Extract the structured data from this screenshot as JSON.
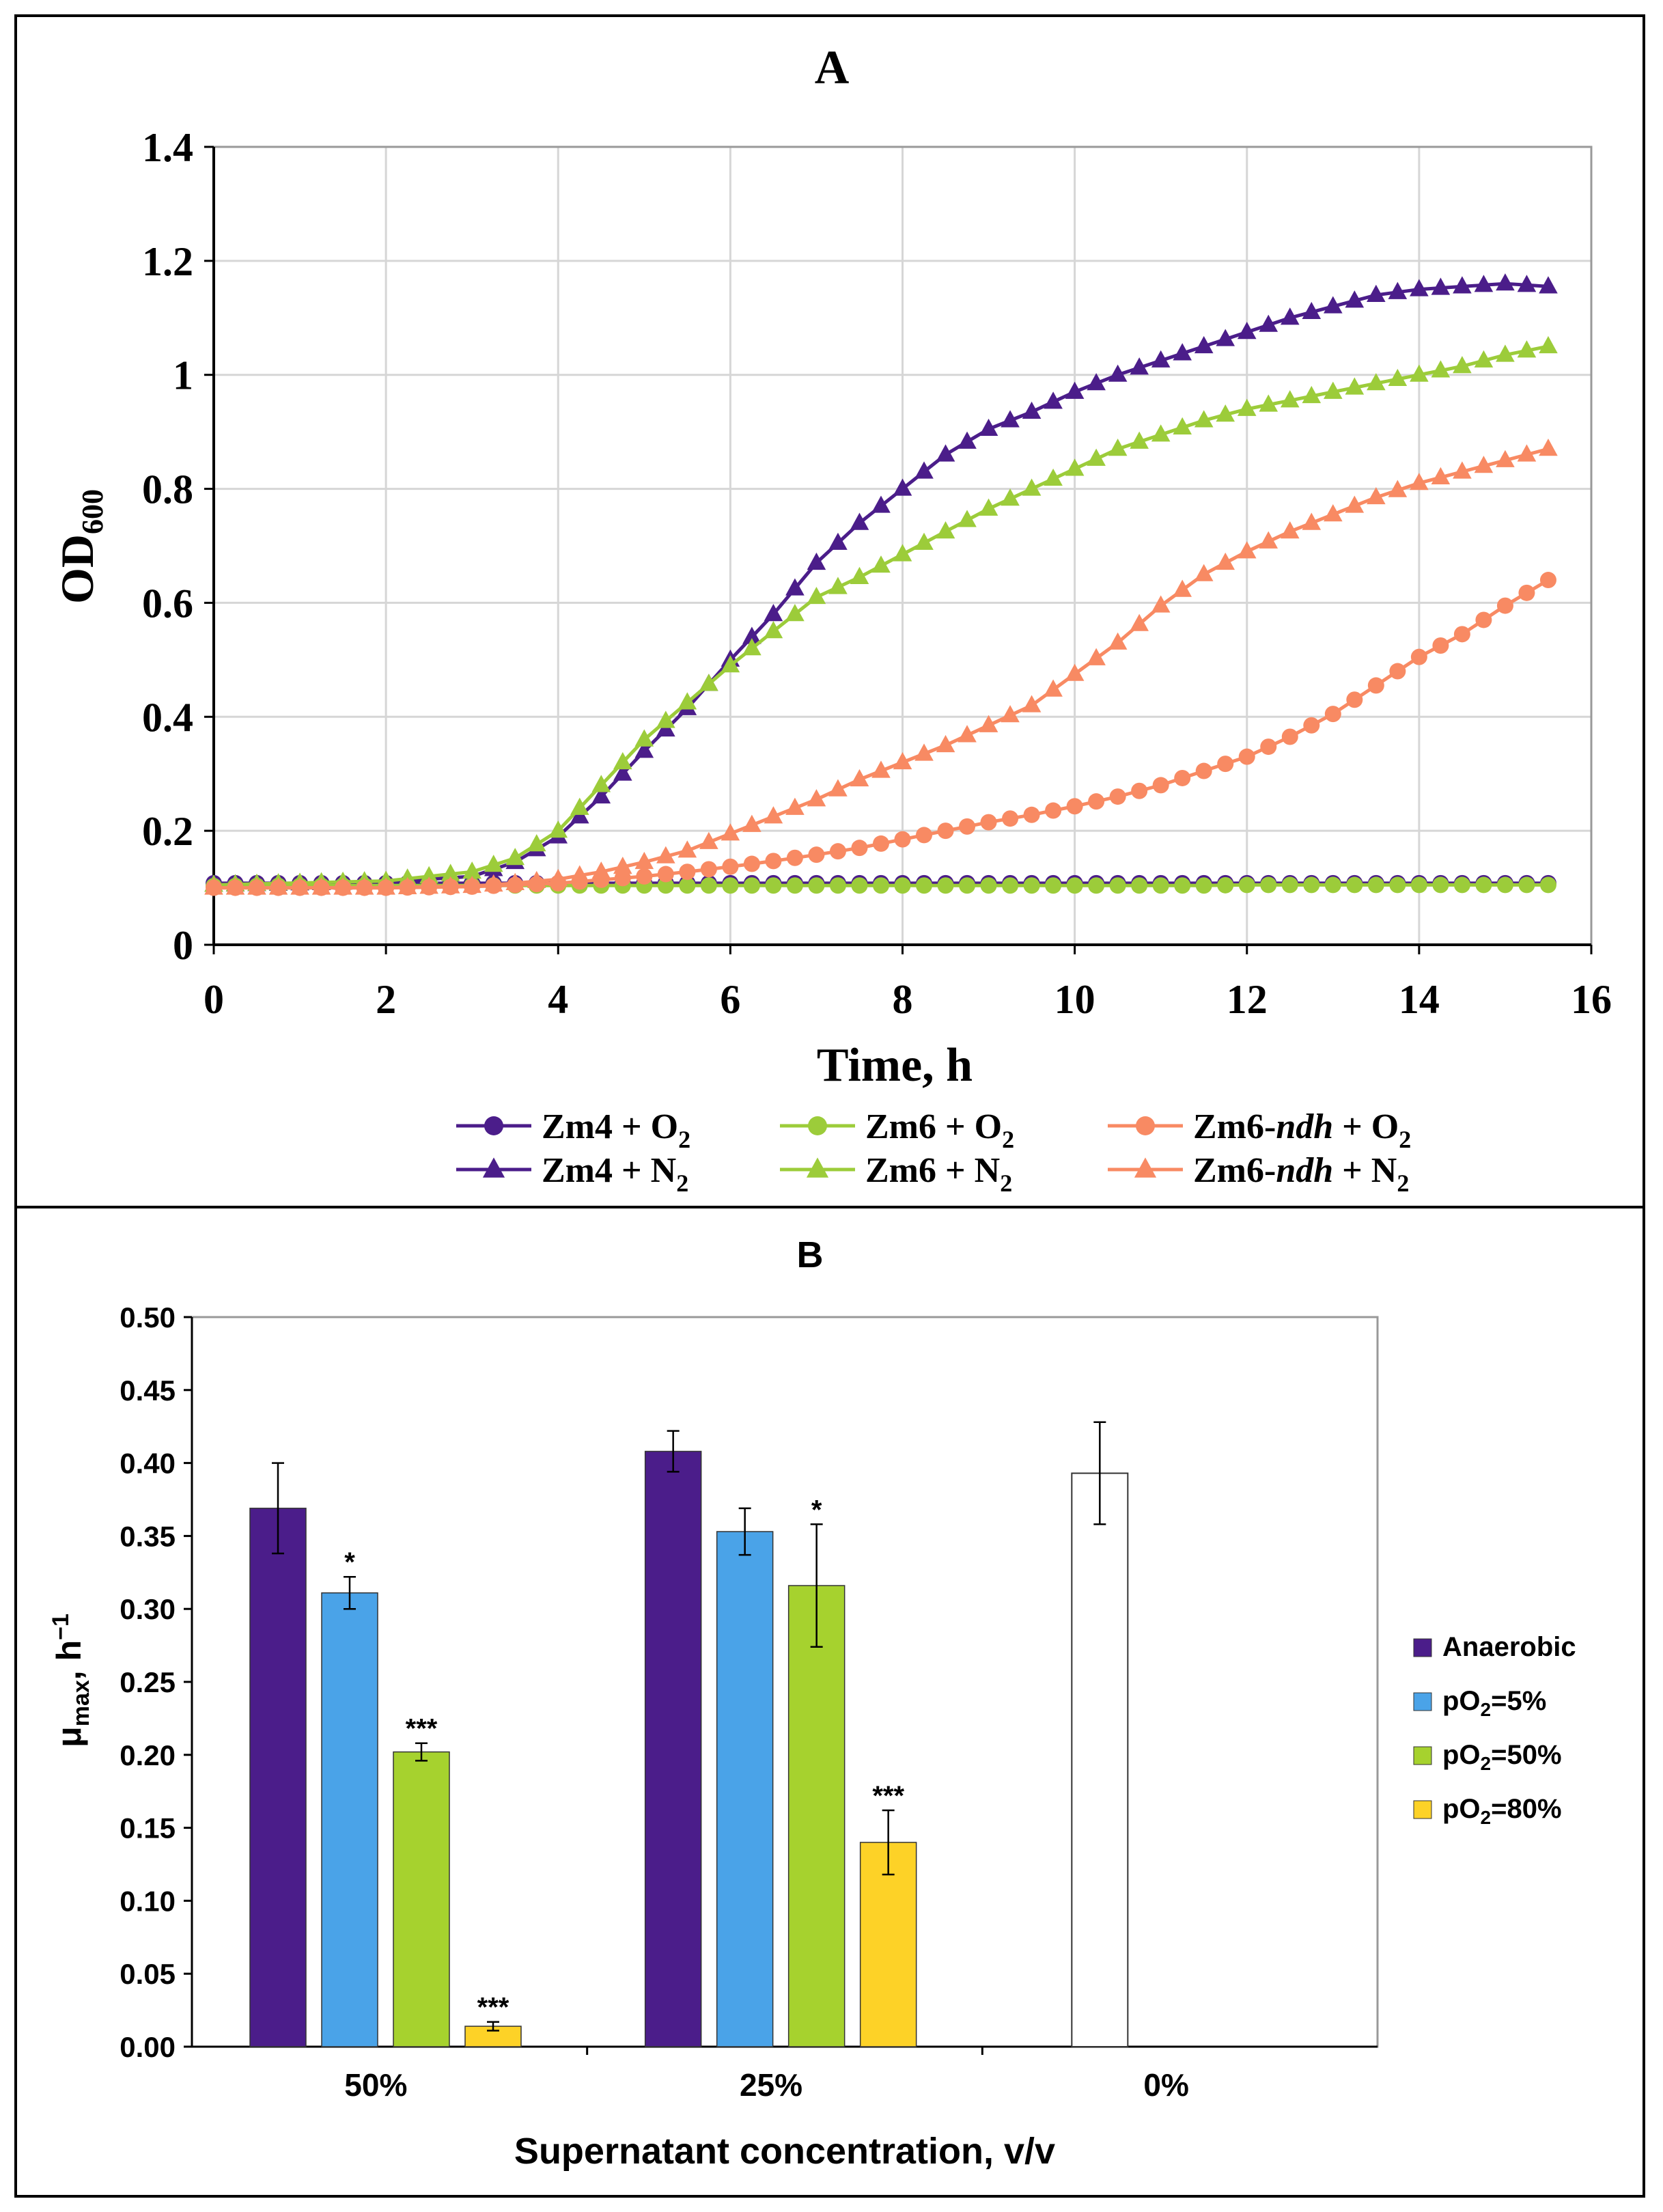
{
  "colors": {
    "zm4": "#4b1d8a",
    "zm6": "#9ccc3a",
    "zm6ndh": "#f88a63",
    "anaerobic": "#4b1d8a",
    "po2_5": "#4aa3e8",
    "po2_50": "#a6d22e",
    "po2_80": "#fdd227",
    "control": "#ffffff"
  },
  "chart_data": [
    {
      "type": "line",
      "panel_label": "A",
      "xlabel": "Time, h",
      "ylabel_main": "OD",
      "ylabel_sub": "600",
      "xlim": [
        0,
        16
      ],
      "ylim": [
        0,
        1.4
      ],
      "xticks": [
        "0",
        "2",
        "4",
        "6",
        "8",
        "10",
        "12",
        "14",
        "16"
      ],
      "yticks": [
        "0",
        "0.2",
        "0.4",
        "0.6",
        "0.8",
        "1",
        "1.2",
        "1.4"
      ],
      "grid": true,
      "legend_position": "bottom",
      "keypoints_x": [
        0,
        2,
        3,
        3.5,
        4,
        4.5,
        5,
        5.5,
        6,
        6.5,
        7,
        7.5,
        8,
        8.5,
        9,
        9.5,
        10,
        10.5,
        11,
        11.5,
        12,
        12.5,
        13,
        13.5,
        14,
        14.5,
        15,
        15.5
      ],
      "series": [
        {
          "name": "Zm4 + O2",
          "legend_main": "Zm4 + O",
          "legend_sub": "2",
          "legend_italic": "",
          "legend_after": "",
          "color_key": "zm4",
          "marker": "circle",
          "y": [
            0.108,
            0.108,
            0.108,
            0.108,
            0.108,
            0.108,
            0.108,
            0.108,
            0.108,
            0.108,
            0.108,
            0.108,
            0.108,
            0.108,
            0.108,
            0.108,
            0.108,
            0.108,
            0.108,
            0.108,
            0.108,
            0.108,
            0.108,
            0.108,
            0.108,
            0.108,
            0.108,
            0.108
          ]
        },
        {
          "name": "Zm4 + N2",
          "legend_main": "Zm4 + N",
          "legend_sub": "2",
          "legend_italic": "",
          "legend_after": "",
          "color_key": "zm4",
          "marker": "triangle",
          "y": [
            0.105,
            0.11,
            0.12,
            0.145,
            0.19,
            0.26,
            0.34,
            0.415,
            0.5,
            0.58,
            0.67,
            0.74,
            0.8,
            0.86,
            0.905,
            0.935,
            0.97,
            1.0,
            1.025,
            1.05,
            1.075,
            1.1,
            1.12,
            1.14,
            1.15,
            1.155,
            1.16,
            1.155
          ]
        },
        {
          "name": "Zm6 + O2",
          "legend_main": "Zm6 + O",
          "legend_sub": "2",
          "legend_italic": "",
          "legend_after": "",
          "color_key": "zm6",
          "marker": "circle",
          "y": [
            0.103,
            0.104,
            0.104,
            0.104,
            0.104,
            0.104,
            0.104,
            0.104,
            0.104,
            0.104,
            0.104,
            0.104,
            0.104,
            0.104,
            0.104,
            0.104,
            0.104,
            0.104,
            0.104,
            0.104,
            0.105,
            0.105,
            0.105,
            0.105,
            0.105,
            0.105,
            0.105,
            0.105
          ]
        },
        {
          "name": "Zm6 + N2",
          "legend_main": "Zm6 + N",
          "legend_sub": "2",
          "legend_italic": "",
          "legend_after": "",
          "color_key": "zm6",
          "marker": "triangle",
          "y": [
            0.105,
            0.112,
            0.128,
            0.152,
            0.2,
            0.28,
            0.36,
            0.425,
            0.49,
            0.55,
            0.61,
            0.645,
            0.685,
            0.725,
            0.765,
            0.8,
            0.835,
            0.87,
            0.895,
            0.92,
            0.94,
            0.955,
            0.97,
            0.985,
            1.0,
            1.015,
            1.035,
            1.05
          ]
        },
        {
          "name": "Zm6-ndh + O2",
          "legend_main": "Zm6-",
          "legend_sub": "2",
          "legend_italic": "ndh",
          "legend_after": " + O",
          "color_key": "zm6ndh",
          "marker": "circle",
          "y": [
            0.1,
            0.1,
            0.102,
            0.105,
            0.108,
            0.114,
            0.12,
            0.128,
            0.137,
            0.147,
            0.158,
            0.17,
            0.185,
            0.2,
            0.215,
            0.228,
            0.243,
            0.26,
            0.28,
            0.305,
            0.33,
            0.365,
            0.405,
            0.455,
            0.505,
            0.545,
            0.595,
            0.64
          ]
        },
        {
          "name": "Zm6-ndh + N2",
          "legend_main": "Zm6-",
          "legend_sub": "2",
          "legend_italic": "ndh",
          "legend_after": " + N",
          "color_key": "zm6ndh",
          "marker": "triangle",
          "y": [
            0.1,
            0.1,
            0.103,
            0.108,
            0.115,
            0.128,
            0.145,
            0.165,
            0.195,
            0.225,
            0.255,
            0.29,
            0.32,
            0.35,
            0.385,
            0.42,
            0.475,
            0.53,
            0.595,
            0.65,
            0.69,
            0.725,
            0.755,
            0.785,
            0.81,
            0.83,
            0.85,
            0.87
          ]
        }
      ]
    },
    {
      "type": "bar",
      "panel_label": "B",
      "xlabel": "Supernatant concentration, v/v",
      "ylabel_main": "μ",
      "ylabel_sub": "max",
      "ylabel_after": ", h",
      "ylabel_sup": "−1",
      "ylim": [
        0,
        0.5
      ],
      "yticks": [
        "0.00",
        "0.05",
        "0.10",
        "0.15",
        "0.20",
        "0.25",
        "0.30",
        "0.35",
        "0.40",
        "0.45",
        "0.50"
      ],
      "categories": [
        "50%",
        "25%",
        "0%"
      ],
      "legend_position": "right",
      "series": [
        {
          "name": "Anaerobic",
          "legend_pre": "Anaerobic",
          "legend_sub": "",
          "legend_post": "",
          "color_key": "anaerobic",
          "values": [
            0.369,
            0.408,
            null
          ],
          "errors": [
            0.031,
            0.014,
            null
          ],
          "sig": [
            "",
            "",
            ""
          ]
        },
        {
          "name": "pO2=5%",
          "legend_pre": "pO",
          "legend_sub": "2",
          "legend_post": "=5%",
          "color_key": "po2_5",
          "values": [
            0.311,
            0.353,
            null
          ],
          "errors": [
            0.011,
            0.016,
            null
          ],
          "sig": [
            "*",
            "",
            ""
          ]
        },
        {
          "name": "pO2=50%",
          "legend_pre": "pO",
          "legend_sub": "2",
          "legend_post": "=50%",
          "color_key": "po2_50",
          "values": [
            0.202,
            0.316,
            null
          ],
          "errors": [
            0.006,
            0.042,
            null
          ],
          "sig": [
            "***",
            "*",
            ""
          ]
        },
        {
          "name": "pO2=80%",
          "legend_pre": "pO",
          "legend_sub": "2",
          "legend_post": "=80%",
          "color_key": "po2_80",
          "values": [
            0.014,
            0.14,
            null
          ],
          "errors": [
            0.003,
            0.022,
            null
          ],
          "sig": [
            "***",
            "***",
            ""
          ]
        }
      ],
      "control": {
        "category": "0%",
        "value": 0.393,
        "error": 0.035,
        "color_key": "control"
      }
    }
  ]
}
